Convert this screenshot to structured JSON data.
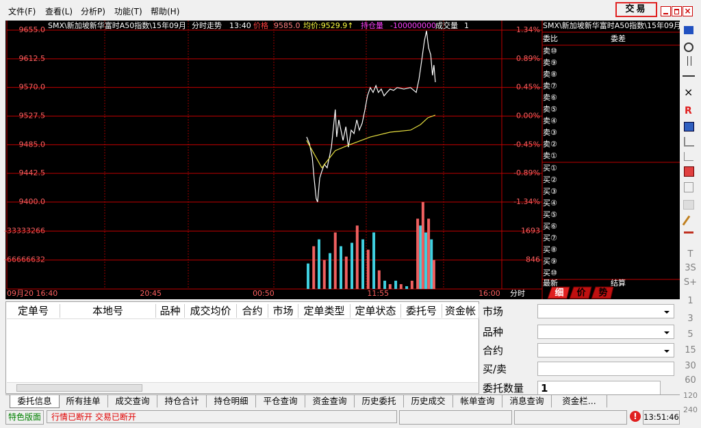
{
  "menu": [
    "文件(F)",
    "查看(L)",
    "分析P)",
    "功能(T)",
    "帮助(H)"
  ],
  "trade_button": "交易",
  "chart_data": {
    "type": "line",
    "header": {
      "instrument": "SMX\\新加坡新华富时A50指数\\15年09月",
      "view": "分时走势",
      "time": "13:40",
      "price_label": "价格",
      "price": "9585.0",
      "avg": "均价:9529.9↑",
      "oi_label": "持仓量",
      "oi": "-100000000",
      "vol_label": "成交量",
      "vol": "1"
    },
    "xlim": [
      0,
      1400
    ],
    "xticks": [
      {
        "value": 0,
        "label": "09月20 16:40"
      },
      {
        "value": 407,
        "label": "20:45"
      },
      {
        "value": 726,
        "label": "00:50"
      },
      {
        "value": 1050,
        "label": "11:55"
      },
      {
        "value": 1365,
        "label": "16:00"
      }
    ],
    "x_label": "分时",
    "ylim": [
      9400,
      9655
    ],
    "yticks": [
      {
        "value": 9655,
        "label": "9655.0"
      },
      {
        "value": 9612.5,
        "label": "9612.5"
      },
      {
        "value": 9570,
        "label": "9570.0"
      },
      {
        "value": 9527.5,
        "label": "9527.5"
      },
      {
        "value": 9485,
        "label": "9485.0"
      },
      {
        "value": 9442.5,
        "label": "9442.5"
      },
      {
        "value": 9400,
        "label": "9400.0"
      }
    ],
    "y2lim": [
      -1.34,
      1.34
    ],
    "y2ticks": [
      {
        "value": 1.34,
        "label": "1.34%"
      },
      {
        "value": 0.89,
        "label": "0.89%"
      },
      {
        "value": 0.45,
        "label": "0.45%"
      },
      {
        "value": 0,
        "label": "0.00%"
      },
      {
        "value": -0.45,
        "label": "-0.45%"
      },
      {
        "value": -0.89,
        "label": "-0.89%"
      },
      {
        "value": -1.34,
        "label": "-1.34%"
      }
    ],
    "oi_ylim": [
      -100000000,
      0
    ],
    "oi_ticks": [
      -33333266,
      -66666632
    ],
    "vol_ylim": [
      0,
      2540
    ],
    "vol_ticks": [
      1693,
      846
    ],
    "series": [
      {
        "color": "#ffffff",
        "x": [
          848,
          856,
          864,
          869,
          875,
          879,
          885,
          891,
          898,
          906,
          912,
          918,
          924,
          929,
          933,
          939,
          945,
          951,
          959,
          966,
          974,
          982,
          990,
          997,
          1005,
          1013,
          1020,
          1028,
          1036,
          1044,
          1051,
          1059,
          1067,
          1075,
          1084,
          1094,
          1104,
          1123,
          1142,
          1158,
          1166,
          1173,
          1181,
          1187,
          1193,
          1199,
          1204,
          1208,
          1212
        ],
        "values": [
          9496.5,
          9486.4,
          9466.0,
          9435.6,
          9405.1,
          9400.0,
          9435.6,
          9445.7,
          9455.9,
          9450.8,
          9466.0,
          9481.3,
          9511.8,
          9537.2,
          9496.5,
          9521.9,
          9506.7,
          9491.4,
          9511.8,
          9481.3,
          9506.7,
          9501.6,
          9521.9,
          9506.7,
          9516.8,
          9537.2,
          9557.5,
          9569.7,
          9562.6,
          9572.7,
          9562.6,
          9567.6,
          9557.5,
          9562.6,
          9567.6,
          9565.6,
          9569.7,
          9567.6,
          9569.7,
          9562.6,
          9582.9,
          9608.3,
          9638.8,
          9654.0,
          9628.6,
          9618.4,
          9587.9,
          9603.2,
          9577.8
        ]
      },
      {
        "color": "#e8e040",
        "x": [
          848,
          891,
          929,
          966,
          1028,
          1084,
          1142,
          1170,
          1191,
          1212
        ],
        "values": [
          9491.4,
          9450.8,
          9476.2,
          9484.3,
          9496.5,
          9503.6,
          9506.7,
          9514.8,
          9525.0,
          9529.0
        ]
      }
    ],
    "volume": {
      "x": [
        852,
        868,
        883,
        898,
        914,
        929,
        945,
        960,
        976,
        991,
        1007,
        1022,
        1038,
        1053,
        1069,
        1084,
        1100,
        1115,
        1131,
        1146,
        1162,
        1170,
        1177,
        1185,
        1193,
        1201,
        1208
      ],
      "values": [
        745,
        1249,
        1450,
        846,
        1047,
        1651,
        1249,
        947,
        1349,
        1853,
        1450,
        1148,
        1651,
        544,
        242,
        141,
        242,
        141,
        81,
        242,
        2054,
        1853,
        2538,
        1651,
        2054,
        1450,
        846
      ],
      "colors": [
        "#40d0e0",
        "#f06060",
        "#40d0e0",
        "#f06060",
        "#40d0e0",
        "#f06060",
        "#40d0e0",
        "#f06060",
        "#40d0e0",
        "#f06060",
        "#40d0e0",
        "#f06060",
        "#40d0e0",
        "#f06060",
        "#40d0e0",
        "#f06060",
        "#40d0e0",
        "#f06060",
        "#40d0e0",
        "#f06060",
        "#f06060",
        "#40d0e0",
        "#f06060",
        "#40d0e0",
        "#f06060",
        "#40d0e0",
        "#f06060"
      ]
    }
  },
  "quote_panel": {
    "title": "SMX\\新加坡新华富时A50指数\\15年09月",
    "ratio": "委比",
    "diff": "委差",
    "asks": [
      "卖⑩",
      "卖⑨",
      "卖⑧",
      "卖⑦",
      "卖⑥",
      "卖⑤",
      "卖④",
      "卖③",
      "卖②",
      "卖①"
    ],
    "bids": [
      "买①",
      "买②",
      "买③",
      "买④",
      "买⑤",
      "买⑥",
      "买⑦",
      "买⑧",
      "买⑨",
      "买⑩"
    ],
    "last": "最新",
    "settle": "结算",
    "tabs": [
      "细",
      "价",
      "势"
    ]
  },
  "toolbar": [
    "R"
  ],
  "timeframes": [
    "T",
    "3S",
    "S+",
    "1",
    "3",
    "5",
    "15",
    "30",
    "60",
    "120",
    "240"
  ],
  "orders_table": {
    "columns": [
      "定单号",
      "本地号",
      "品种",
      "成交均价",
      "合约",
      "市场",
      "定单类型",
      "定单状态",
      "委托号",
      "资金帐"
    ]
  },
  "order_form": {
    "labels": [
      "市场",
      "品种",
      "合约",
      "买/卖",
      "委托数量"
    ],
    "quantity": "1"
  },
  "tabs": [
    "委托信息",
    "所有挂单",
    "成交查询",
    "持仓合计",
    "持仓明细",
    "平仓查询",
    "资金查询",
    "历史委托",
    "历史成交",
    "帐单查询",
    "消息查询",
    "资金栏..."
  ],
  "status": {
    "layout": "特色版面",
    "connection": "行情已断开 交易已断开",
    "clock": "13:51:46"
  }
}
